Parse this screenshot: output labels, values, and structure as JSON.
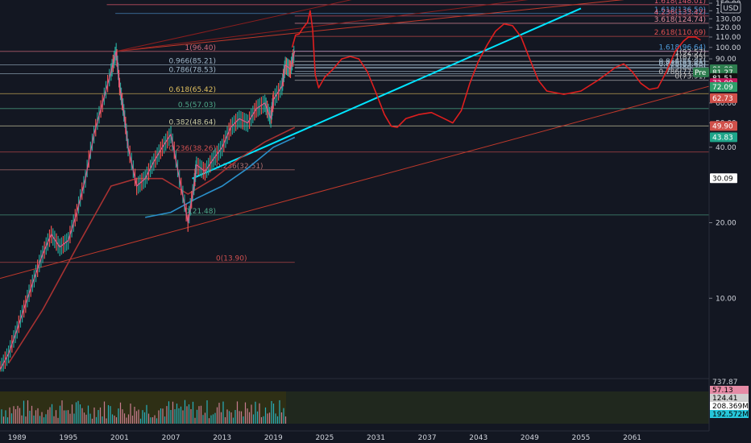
{
  "currency": "USD",
  "chart_data": {
    "type": "line",
    "scale": "log",
    "ylim": [
      5,
      150
    ],
    "xlim": [
      1987,
      2070
    ],
    "x_ticks": [
      "1989",
      "1995",
      "2001",
      "2007",
      "2013",
      "2019",
      "2025",
      "2031",
      "2037",
      "2043",
      "2049",
      "2055",
      "2061"
    ],
    "y_ticks": [
      {
        "value": 150,
        "label": "150.00"
      },
      {
        "value": 140,
        "label": "140.00"
      },
      {
        "value": 130,
        "label": "130.00"
      },
      {
        "value": 120,
        "label": "120.00"
      },
      {
        "value": 110,
        "label": "110.00"
      },
      {
        "value": 100,
        "label": "100.00"
      },
      {
        "value": 90,
        "label": "90.00"
      },
      {
        "value": 60,
        "label": "60.00"
      },
      {
        "value": 50,
        "label": "50.00"
      },
      {
        "value": 40,
        "label": "40.00"
      },
      {
        "value": 20,
        "label": "20.00"
      },
      {
        "value": 10,
        "label": "10.00"
      }
    ],
    "fib_levels": [
      {
        "label": "1.618(148.01)",
        "value": 148.01,
        "color": "#e05a6e",
        "x_start": 1999.5,
        "x_end": 2070
      },
      {
        "label": "1.618(136.50)",
        "value": 136.5,
        "color": "#4f9bd9",
        "x_start": 2000.5,
        "x_end": 2070
      },
      {
        "label": "4.236(133.42)",
        "value": 133.42,
        "color": "#e05a6e",
        "x_start": 2021.5,
        "x_end": 2070
      },
      {
        "label": "3.618(124.74)",
        "value": 124.74,
        "color": "#e08a9a",
        "x_start": 2021.5,
        "x_end": 2070
      },
      {
        "label": "2.618(110.69)",
        "value": 110.69,
        "color": "#e05050",
        "x_start": 2021.5,
        "x_end": 2070
      },
      {
        "label": "1.618(96.64)",
        "value": 96.64,
        "color": "#4f9bd9",
        "x_start": 2021.5,
        "x_end": 2070
      },
      {
        "label": "1(96.40)",
        "value": 96.4,
        "color": "#d16a7a",
        "x_start": 1987,
        "x_end": 2070
      },
      {
        "label": "1(92.57)",
        "value": 92.57,
        "color": "#c9c9c9",
        "x_start": 2021.5,
        "x_end": 2070
      },
      {
        "label": "1(87.95)",
        "value": 87.95,
        "color": "#c9c9c9",
        "x_start": 2021.5,
        "x_end": 2070
      },
      {
        "label": "0.966(85.21)",
        "value": 85.21,
        "color": "#9fb6c8",
        "x_start": 1987,
        "x_end": 2070
      },
      {
        "label": "0.866(85.01)",
        "value": 85.01,
        "color": "#9fb6c8",
        "x_start": 2021.5,
        "x_end": 2070
      },
      {
        "label": "0.786(83.43)",
        "value": 83.43,
        "color": "#9fb6c8",
        "x_start": 2021.5,
        "x_end": 2070
      },
      {
        "label": "0.618(82.60)",
        "value": 82.6,
        "color": "#9fb6c8",
        "x_start": 2021.5,
        "x_end": 2070
      },
      {
        "label": "0.5(80.20)",
        "value": 80.2,
        "color": "#9fb6c8",
        "x_start": 2021.5,
        "x_end": 2070
      },
      {
        "label": "0.786(78.53)",
        "value": 78.53,
        "color": "#9fb6c8",
        "x_start": 1987,
        "x_end": 2070
      },
      {
        "label": "0.786(77.08)",
        "value": 77.08,
        "color": "#c9c9c9",
        "x_start": 2021.5,
        "x_end": 2070
      },
      {
        "label": "0(73.91)",
        "value": 73.91,
        "color": "#c9c9c9",
        "x_start": 2021.5,
        "x_end": 2070
      },
      {
        "label": "0.618(65.42)",
        "value": 65.42,
        "color": "#e0c060",
        "x_start": 1987,
        "x_end": 2070
      },
      {
        "label": "0.5(57.03)",
        "value": 57.03,
        "color": "#4faa8a",
        "x_start": 1987,
        "x_end": 2070
      },
      {
        "label": "0.382(48.64)",
        "value": 48.64,
        "color": "#c8c8a0",
        "x_start": 1987,
        "x_end": 2070
      },
      {
        "label": "0.236(38.26)",
        "value": 38.26,
        "color": "#d05050",
        "x_start": 1987,
        "x_end": 2070
      },
      {
        "label": "0.236(32.51)",
        "value": 32.51,
        "color": "#b07070",
        "x_start": 1987,
        "x_end": 2021.5
      },
      {
        "label": "0(21.48)",
        "value": 21.48,
        "color": "#4faa8a",
        "x_start": 1987,
        "x_end": 2070
      },
      {
        "label": "0(13.90)",
        "value": 13.9,
        "color": "#d05050",
        "x_start": 1987,
        "x_end": 2021.5
      }
    ],
    "price_series": [
      [
        1987,
        5.2
      ],
      [
        1988,
        6
      ],
      [
        1989,
        7.5
      ],
      [
        1990,
        9.5
      ],
      [
        1991,
        12
      ],
      [
        1992,
        15
      ],
      [
        1993,
        18
      ],
      [
        1994,
        16
      ],
      [
        1995,
        17
      ],
      [
        1996,
        22
      ],
      [
        1997,
        30
      ],
      [
        1998,
        45
      ],
      [
        1999,
        60
      ],
      [
        2000,
        80
      ],
      [
        2000.6,
        96.4
      ],
      [
        2001,
        70
      ],
      [
        2001.5,
        55
      ],
      [
        2002,
        40
      ],
      [
        2003,
        28
      ],
      [
        2004,
        30
      ],
      [
        2005,
        35
      ],
      [
        2006,
        40
      ],
      [
        2007,
        45
      ],
      [
        2008,
        30
      ],
      [
        2009,
        20
      ],
      [
        2009.7,
        28
      ],
      [
        2010,
        34
      ],
      [
        2011,
        32
      ],
      [
        2012,
        36
      ],
      [
        2013,
        40
      ],
      [
        2014,
        48
      ],
      [
        2015,
        52
      ],
      [
        2016,
        50
      ],
      [
        2017,
        57
      ],
      [
        2018,
        60
      ],
      [
        2018.7,
        52
      ],
      [
        2019,
        62
      ],
      [
        2020,
        70
      ],
      [
        2020.4,
        85
      ],
      [
        2021,
        82
      ],
      [
        2021.5,
        97
      ]
    ],
    "projection_path": [
      [
        2021.2,
        100
      ],
      [
        2021.6,
        112
      ],
      [
        2022,
        113
      ],
      [
        2022.5,
        120
      ],
      [
        2023,
        126
      ],
      [
        2023.3,
        140
      ],
      [
        2023.6,
        118
      ],
      [
        2023.9,
        78
      ],
      [
        2024.3,
        69
      ],
      [
        2025,
        76
      ],
      [
        2026,
        82
      ],
      [
        2027,
        90
      ],
      [
        2028,
        92
      ],
      [
        2029,
        90
      ],
      [
        2030,
        80
      ],
      [
        2031,
        66
      ],
      [
        2032,
        54
      ],
      [
        2032.8,
        48.5
      ],
      [
        2033.5,
        48
      ],
      [
        2034.5,
        52
      ],
      [
        2036,
        54
      ],
      [
        2037.5,
        55
      ],
      [
        2039,
        52
      ],
      [
        2040,
        50
      ],
      [
        2041,
        56
      ],
      [
        2042,
        72
      ],
      [
        2043,
        88
      ],
      [
        2044,
        102
      ],
      [
        2045,
        116
      ],
      [
        2046,
        124
      ],
      [
        2047,
        122
      ],
      [
        2048,
        110
      ],
      [
        2049,
        90
      ],
      [
        2050,
        74
      ],
      [
        2051,
        67
      ],
      [
        2053,
        65
      ],
      [
        2055,
        67
      ],
      [
        2057,
        74
      ],
      [
        2059,
        83
      ],
      [
        2060,
        86
      ],
      [
        2061,
        80
      ],
      [
        2062,
        72
      ],
      [
        2063,
        68
      ],
      [
        2064,
        69
      ],
      [
        2065,
        80
      ],
      [
        2066,
        96
      ],
      [
        2067,
        106
      ],
      [
        2067.6,
        110
      ],
      [
        2068.4,
        110
      ],
      [
        2069,
        107
      ]
    ],
    "trendlines": [
      {
        "name": "cyan_trend",
        "color": "#00e5ff",
        "from": [
          2009.5,
          30
        ],
        "to": [
          2055,
          143
        ]
      },
      {
        "name": "upper_red",
        "color": "#c0392b",
        "from": [
          2000.6,
          96.4
        ],
        "to": [
          2060,
          155
        ]
      },
      {
        "name": "lower_red",
        "color": "#c0392b",
        "from": [
          1987,
          12
        ],
        "to": [
          2070,
          70
        ]
      },
      {
        "name": "fan1",
        "color": "#8b1e1e",
        "from": [
          2000.6,
          96.4
        ],
        "to": [
          2030,
          160
        ]
      },
      {
        "name": "fan2",
        "color": "#8b1e1e",
        "from": [
          2000.6,
          96.4
        ],
        "to": [
          2052,
          160
        ]
      }
    ],
    "moving_averages": [
      {
        "name": "ma_cyan",
        "color": "#2a8fc9",
        "points": [
          [
            2004,
            21
          ],
          [
            2007,
            22
          ],
          [
            2010,
            25
          ],
          [
            2013,
            28
          ],
          [
            2016,
            33
          ],
          [
            2019,
            40
          ],
          [
            2021.5,
            43.8
          ]
        ]
      },
      {
        "name": "ma_red",
        "color": "#a83232",
        "points": [
          [
            1988,
            5.5
          ],
          [
            1992,
            9
          ],
          [
            1996,
            16
          ],
          [
            2000,
            28
          ],
          [
            2003,
            30
          ],
          [
            2006,
            30
          ],
          [
            2009,
            26
          ],
          [
            2012,
            30
          ],
          [
            2015,
            36
          ],
          [
            2018,
            42
          ],
          [
            2021.5,
            48
          ]
        ]
      }
    ],
    "price_badges": [
      {
        "label": "81.80",
        "value": 81.8,
        "bg": "#2e7d4f",
        "fg": "#ffffff"
      },
      {
        "label": "81.27",
        "value": 79.5,
        "bg": "#2e7d4f",
        "fg": "#ffffff"
      },
      {
        "label": "81.51",
        "value": 75.5,
        "bg": "#111111",
        "fg": "#ffffff"
      },
      {
        "label": "72.09",
        "value": 72.09,
        "bg": "#c2185b",
        "fg": "#ffffff"
      },
      {
        "label": "72.09",
        "value": 69.5,
        "bg": "#2e9e6a",
        "fg": "#ffffff"
      },
      {
        "label": "62.73",
        "value": 62.73,
        "bg": "#d0504a",
        "fg": "#ffffff"
      },
      {
        "label": "49.90",
        "value": 48.64,
        "bg": "#d0504a",
        "fg": "#ffffff"
      },
      {
        "label": "43.83",
        "value": 43.83,
        "bg": "#1fa58a",
        "fg": "#ffffff"
      },
      {
        "label": "30.09",
        "value": 30.09,
        "bg": "#ffffff",
        "fg": "#000000"
      }
    ],
    "pre_label": "Pre",
    "indicator": {
      "badges": [
        {
          "label": "737.87",
          "bg": "#131722",
          "fg": "#d1d4dc"
        },
        {
          "label": "57.13",
          "bg": "#e58ba6",
          "fg": "#000000"
        },
        {
          "label": "124.41",
          "bg": "#cfcfcf",
          "fg": "#000000"
        },
        {
          "label": "208.369M",
          "bg": "#ffffff",
          "fg": "#000000"
        },
        {
          "label": "192.572M",
          "bg": "#26c6da",
          "fg": "#000000"
        }
      ]
    }
  }
}
